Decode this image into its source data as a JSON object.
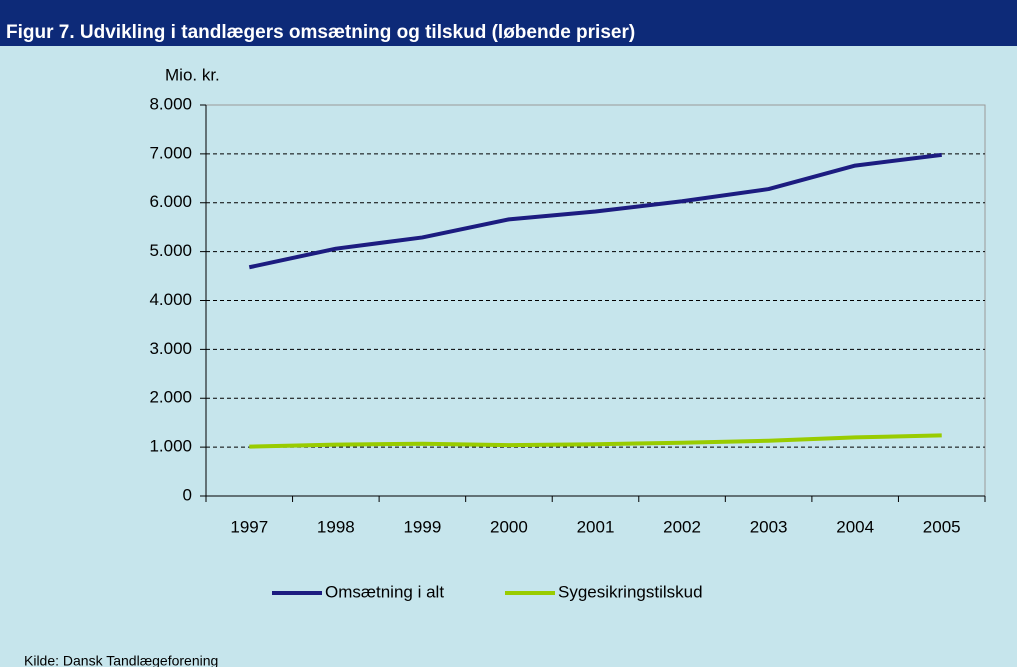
{
  "chart_data": {
    "type": "line",
    "title": "Figur 7. Udvikling i tandlægers omsætning og tilskud (løbende priser)",
    "y_axis_label": "Mio. kr.",
    "source": "Kilde: Dansk Tandlægeforening",
    "categories": [
      "1997",
      "1998",
      "1999",
      "2000",
      "2001",
      "2002",
      "2003",
      "2004",
      "2005"
    ],
    "series": [
      {
        "name": "Omsætning i alt",
        "color": "#1c1c80",
        "values": [
          4680,
          5060,
          5290,
          5660,
          5820,
          6030,
          6280,
          6760,
          6980
        ]
      },
      {
        "name": "Sygesikringstilskud",
        "color": "#99cc00",
        "values": [
          1010,
          1050,
          1070,
          1040,
          1060,
          1090,
          1130,
          1200,
          1240
        ]
      }
    ],
    "ylim": [
      0,
      8000
    ],
    "yticks": [
      0,
      {
        "value": 1000,
        "label": "1.000"
      },
      {
        "value": 2000,
        "label": "2.000"
      },
      {
        "value": 3000,
        "label": "3.000"
      },
      {
        "value": 4000,
        "label": "4.000"
      },
      {
        "value": 5000,
        "label": "5.000"
      },
      {
        "value": 6000,
        "label": "6.000"
      },
      {
        "value": 7000,
        "label": "7.000"
      },
      {
        "value": 8000,
        "label": "8.000"
      }
    ],
    "grid": true,
    "legend": "bottom"
  }
}
